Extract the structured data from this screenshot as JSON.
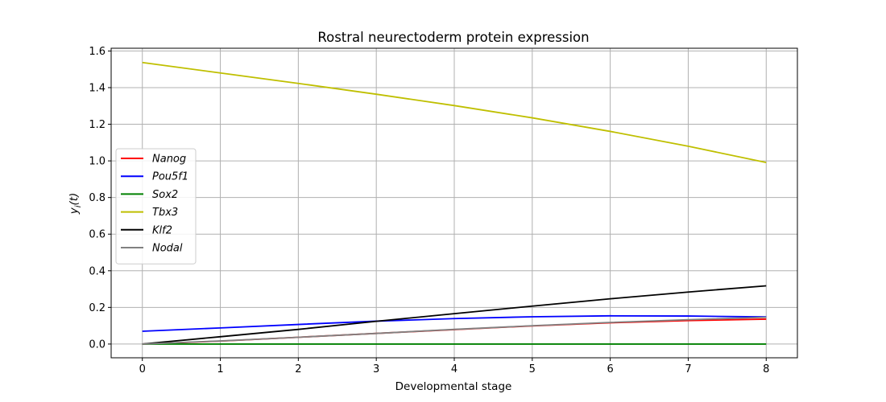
{
  "chart_data": {
    "type": "line",
    "title": "Rostral neurectoderm protein expression",
    "xlabel": "Developmental stage",
    "ylabel": "y_i(t)",
    "xlim": [
      -0.4,
      8.4
    ],
    "ylim": [
      -0.075,
      1.615
    ],
    "xticks": [
      0,
      1,
      2,
      3,
      4,
      5,
      6,
      7,
      8
    ],
    "yticks": [
      "0.0",
      "0.2",
      "0.4",
      "0.6",
      "0.8",
      "1.0",
      "1.2",
      "1.4",
      "1.6"
    ],
    "grid": true,
    "legend_position": "center-left",
    "x": [
      0,
      1,
      2,
      3,
      4,
      5,
      6,
      7,
      8
    ],
    "series": [
      {
        "name": "Nanog",
        "color": "#ff0000",
        "values": [
          0.0,
          0.016,
          0.037,
          0.058,
          0.079,
          0.099,
          0.116,
          0.128,
          0.136
        ]
      },
      {
        "name": "Pou5f1",
        "color": "#0000ff",
        "values": [
          0.07,
          0.088,
          0.107,
          0.125,
          0.139,
          0.149,
          0.154,
          0.153,
          0.148
        ]
      },
      {
        "name": "Sox2",
        "color": "#008000",
        "values": [
          0.0,
          0.0,
          0.0,
          0.0,
          0.0,
          0.0,
          0.0,
          0.0,
          0.0
        ]
      },
      {
        "name": "Tbx3",
        "color": "#bfbf00",
        "values": [
          1.537,
          1.48,
          1.423,
          1.364,
          1.302,
          1.235,
          1.161,
          1.08,
          0.991
        ]
      },
      {
        "name": "Klf2",
        "color": "#000000",
        "values": [
          0.0,
          0.04,
          0.08,
          0.124,
          0.166,
          0.207,
          0.247,
          0.284,
          0.318
        ]
      },
      {
        "name": "Nodal",
        "color": "#808080",
        "values": [
          0.0,
          0.017,
          0.037,
          0.058,
          0.08,
          0.1,
          0.118,
          0.133,
          0.146
        ]
      }
    ]
  }
}
